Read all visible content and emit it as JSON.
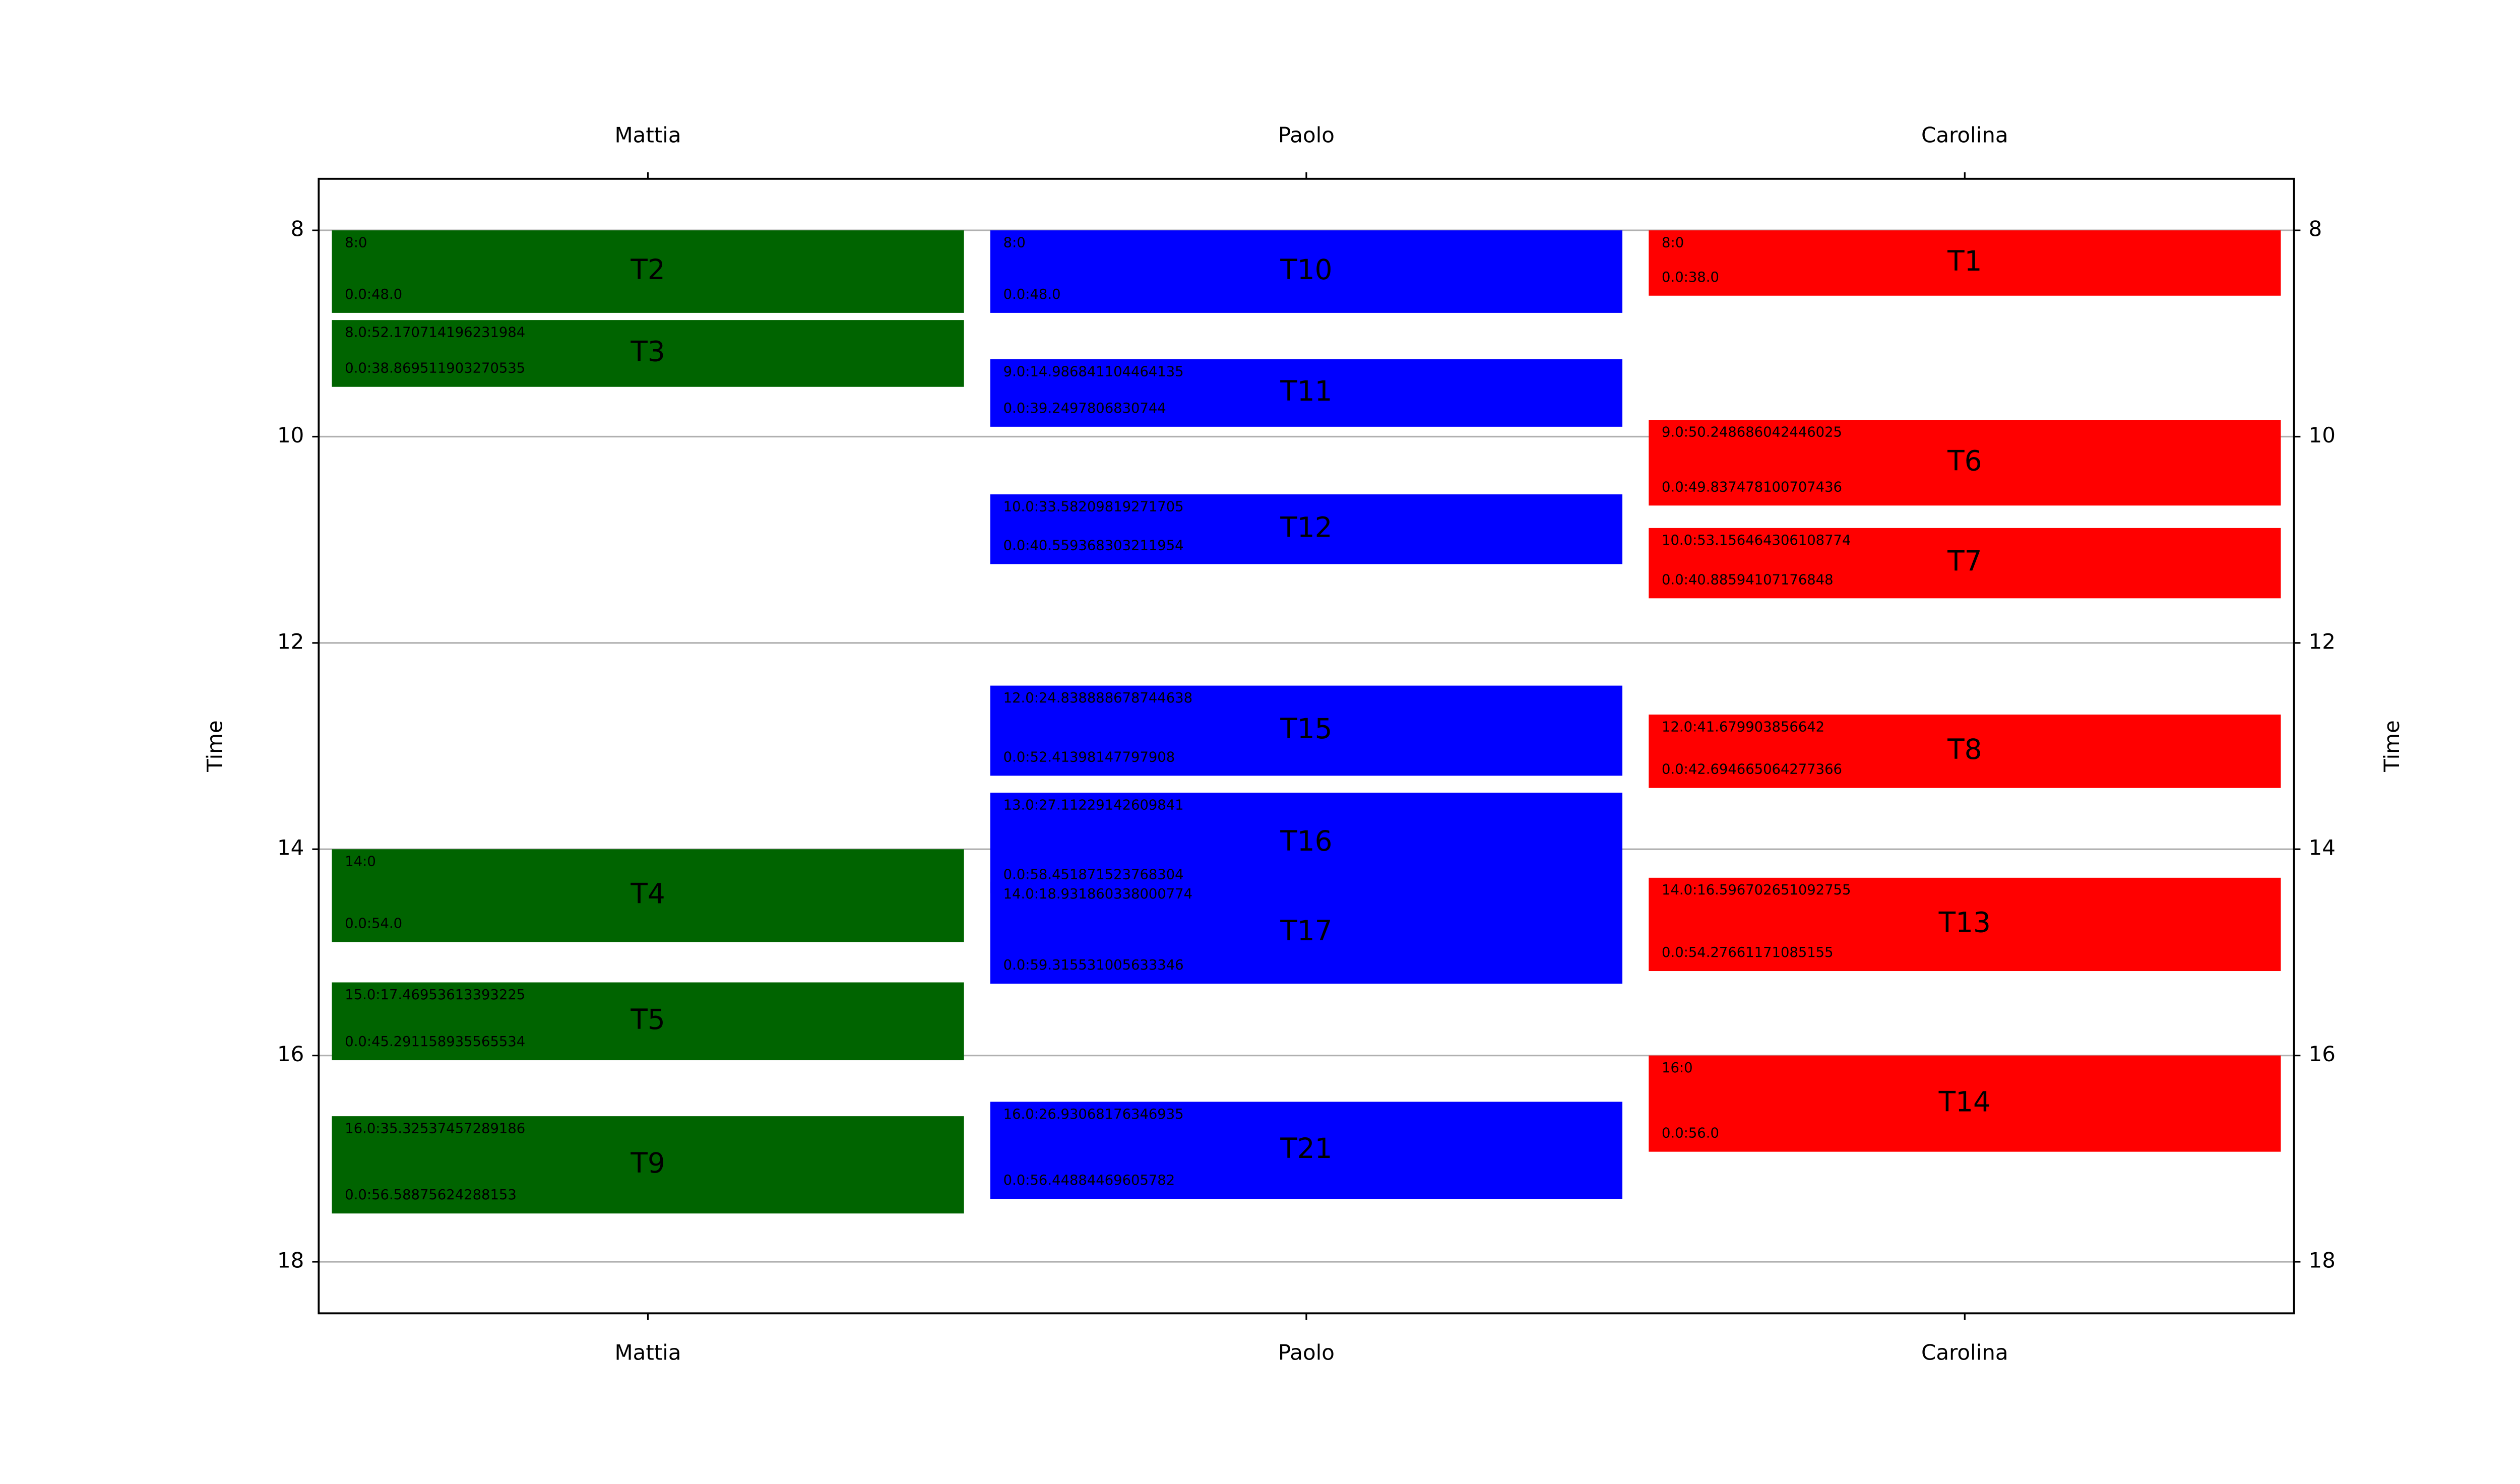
{
  "chart_data": {
    "type": "gantt",
    "ylabel": "Time",
    "ylim": [
      7.5,
      18.5
    ],
    "y_inverted": true,
    "yticks": [
      8,
      10,
      12,
      14,
      16,
      18
    ],
    "grid": true,
    "series": [
      {
        "name": "Mattia",
        "color": "#006400",
        "tasks": [
          {
            "label": "T2",
            "start": 8,
            "duration": 0.8,
            "start_label": "8:0",
            "duration_label": "0.0:48.0"
          },
          {
            "label": "T3",
            "start": 8.8695,
            "duration": 0.6478,
            "start_label": "8.0:52.170714196231984",
            "duration_label": "0.0:38.869511903270535"
          },
          {
            "label": "T4",
            "start": 14,
            "duration": 0.9,
            "start_label": "14:0",
            "duration_label": "0.0:54.0"
          },
          {
            "label": "T5",
            "start": 15.2912,
            "duration": 0.7549,
            "start_label": "15.0:17.46953613393225",
            "duration_label": "0.0:45.291158935565534"
          },
          {
            "label": "T9",
            "start": 16.5888,
            "duration": 0.9431,
            "start_label": "16.0:35.32537457289186",
            "duration_label": "0.0:56.58875624288153"
          }
        ]
      },
      {
        "name": "Paolo",
        "color": "#0000ff",
        "tasks": [
          {
            "label": "T10",
            "start": 8,
            "duration": 0.8,
            "start_label": "8:0",
            "duration_label": "0.0:48.0"
          },
          {
            "label": "T11",
            "start": 9.2498,
            "duration": 0.6542,
            "start_label": "9.0:14.986841104464135",
            "duration_label": "0.0:39.2497806830744"
          },
          {
            "label": "T12",
            "start": 10.5597,
            "duration": 0.676,
            "start_label": "10.0:33.58209819271705",
            "duration_label": "0.0:40.559368303211954"
          },
          {
            "label": "T15",
            "start": 12.414,
            "duration": 0.8736,
            "start_label": "12.0:24.838888678744638",
            "duration_label": "0.0:52.41398147797908"
          },
          {
            "label": "T16",
            "start": 13.4519,
            "duration": 0.9742,
            "start_label": "13.0:27.11229142609841",
            "duration_label": "0.0:58.451871523768304"
          },
          {
            "label": "T17",
            "start": 14.3155,
            "duration": 0.9886,
            "start_label": "14.0:18.931860338000774",
            "duration_label": "0.0:59.315531005633346"
          },
          {
            "label": "T21",
            "start": 16.4488,
            "duration": 0.9408,
            "start_label": "16.0:26.93068176346935",
            "duration_label": "0.0:56.44884469605782"
          }
        ]
      },
      {
        "name": "Carolina",
        "color": "#ff0000",
        "tasks": [
          {
            "label": "T1",
            "start": 8,
            "duration": 0.6333,
            "start_label": "8:0",
            "duration_label": "0.0:38.0"
          },
          {
            "label": "T6",
            "start": 9.8375,
            "duration": 0.8306,
            "start_label": "9.0:50.248686042446025",
            "duration_label": "0.0:49.837478100707436"
          },
          {
            "label": "T7",
            "start": 10.8859,
            "duration": 0.6814,
            "start_label": "10.0:53.156464306108774",
            "duration_label": "0.0:40.88594107176848"
          },
          {
            "label": "T8",
            "start": 12.6947,
            "duration": 0.7116,
            "start_label": "12.0:41.679903856642",
            "duration_label": "0.0:42.694665064277366"
          },
          {
            "label": "T13",
            "start": 14.2766,
            "duration": 0.9046,
            "start_label": "14.0:16.596702651092755",
            "duration_label": "0.0:54.27661171085155"
          },
          {
            "label": "T14",
            "start": 16,
            "duration": 0.9333,
            "start_label": "16:0",
            "duration_label": "0.0:56.0"
          }
        ]
      }
    ]
  }
}
